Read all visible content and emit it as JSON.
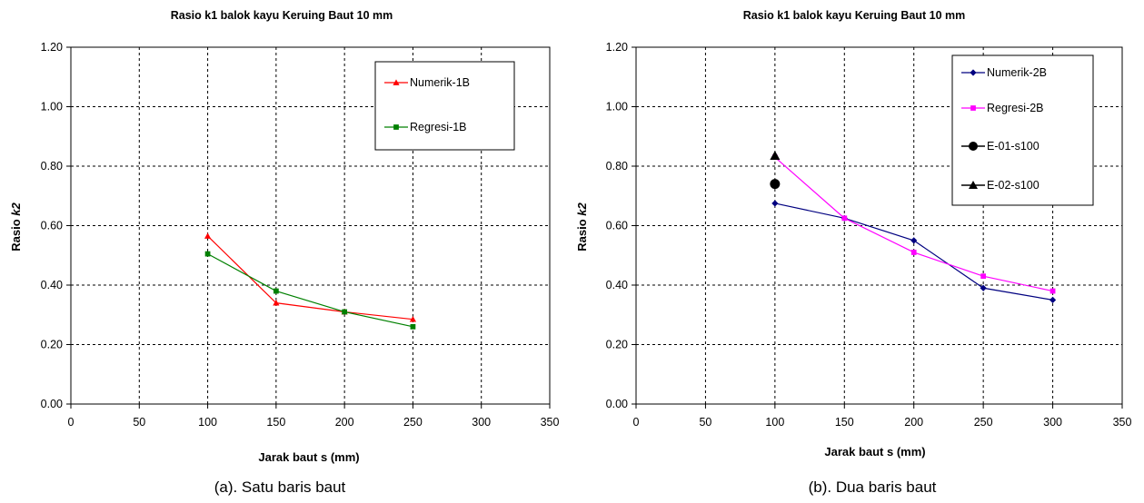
{
  "chart_data": [
    {
      "type": "line",
      "title": "Rasio k1 balok kayu Keruing Baut 10 mm",
      "xlabel": "Jarak baut s (mm)",
      "ylabel_prefix": "Rasio ",
      "ylabel_var": "k2",
      "caption": "(a). Satu baris baut",
      "xlim": [
        0,
        350
      ],
      "ylim": [
        0,
        1.2
      ],
      "xticks": [
        "0",
        "50",
        "100",
        "150",
        "200",
        "250",
        "300",
        "350"
      ],
      "yticks": [
        "0.00",
        "0.20",
        "0.40",
        "0.60",
        "0.80",
        "1.00",
        "1.20"
      ],
      "grid": true,
      "legend_position": "top-right",
      "series": [
        {
          "name": "Numerik-1B",
          "color": "#ff0000",
          "marker": "triangle",
          "line": true,
          "x": [
            100,
            150,
            200,
            250
          ],
          "y": [
            0.565,
            0.34,
            0.31,
            0.285
          ]
        },
        {
          "name": "Regresi-1B",
          "color": "#008000",
          "marker": "square",
          "line": true,
          "x": [
            100,
            150,
            200,
            250
          ],
          "y": [
            0.505,
            0.38,
            0.31,
            0.26
          ]
        }
      ]
    },
    {
      "type": "line",
      "title": "Rasio k1 balok kayu Keruing Baut 10 mm",
      "xlabel": "Jarak baut s (mm)",
      "ylabel_prefix": "Rasio ",
      "ylabel_var": "k2",
      "caption": "(b). Dua baris baut",
      "xlim": [
        0,
        350
      ],
      "ylim": [
        0,
        1.2
      ],
      "xticks": [
        "0",
        "50",
        "100",
        "150",
        "200",
        "250",
        "300",
        "350"
      ],
      "yticks": [
        "0.00",
        "0.20",
        "0.40",
        "0.60",
        "0.80",
        "1.00",
        "1.20"
      ],
      "grid": true,
      "legend_position": "top-right",
      "series": [
        {
          "name": "Numerik-2B",
          "color": "#000080",
          "marker": "diamond",
          "line": true,
          "x": [
            100,
            150,
            200,
            250,
            300
          ],
          "y": [
            0.675,
            0.625,
            0.55,
            0.39,
            0.35
          ]
        },
        {
          "name": "Regresi-2B",
          "color": "#ff00ff",
          "marker": "square",
          "line": true,
          "x": [
            100,
            150,
            200,
            250,
            300
          ],
          "y": [
            0.83,
            0.625,
            0.51,
            0.43,
            0.38
          ]
        },
        {
          "name": "E-01-s100",
          "color": "#000000",
          "marker": "circle",
          "line": false,
          "x": [
            100
          ],
          "y": [
            0.74
          ]
        },
        {
          "name": "E-02-s100",
          "color": "#000000",
          "marker": "triangle",
          "line": false,
          "x": [
            100
          ],
          "y": [
            0.835
          ]
        }
      ]
    }
  ]
}
